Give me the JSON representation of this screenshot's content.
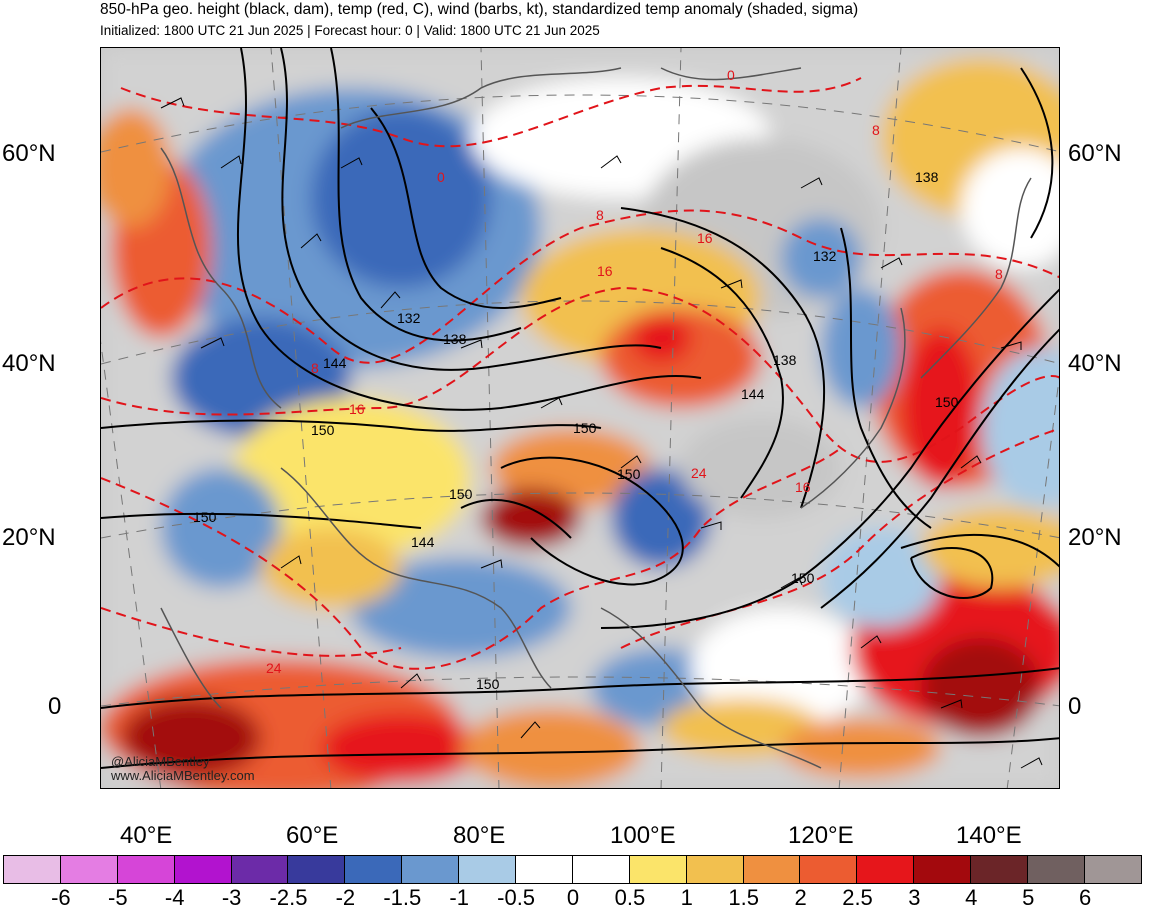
{
  "header": {
    "title": "850-hPa geo. height (black, dam), temp (red, C), wind (barbs, kt), standardized temp anomaly (shaded, sigma)",
    "subtitle": "Initialized: 1800 UTC 21 Jun 2025 | Forecast hour: 0 | Valid: 1800 UTC 21 Jun 2025"
  },
  "map": {
    "lat_labels": [
      "60°N",
      "40°N",
      "20°N",
      "0"
    ],
    "lon_labels": [
      "40°E",
      "60°E",
      "80°E",
      "100°E",
      "120°E",
      "140°E"
    ],
    "height_contour_labels": [
      "132",
      "138",
      "144",
      "150",
      "150",
      "150",
      "150",
      "144",
      "150",
      "132",
      "138",
      "138",
      "144",
      "150",
      "150",
      "150"
    ],
    "temp_contour_labels": [
      "0",
      "0",
      "8",
      "8",
      "16",
      "16",
      "8",
      "16",
      "24",
      "24",
      "16",
      "8"
    ],
    "watermark_handle": "@AliciaMBentley",
    "watermark_url": "www.AliciaMBentley.com"
  },
  "colorbar": {
    "colors": [
      "#e8bde6",
      "#e47de3",
      "#d645d8",
      "#b213cf",
      "#6c2ba8",
      "#383a9c",
      "#3b69b9",
      "#6a98cf",
      "#a9cbe6",
      "#ffffff",
      "#ffffff",
      "#fbe46a",
      "#f2c04f",
      "#ef9040",
      "#ec5c31",
      "#e6161b",
      "#a3090d",
      "#6b2528",
      "#706060",
      "#a09696"
    ],
    "tick_labels": [
      "-6",
      "-5",
      "-4",
      "-3",
      "-2.5",
      "-2",
      "-1.5",
      "-1",
      "-0.5",
      "0",
      "0.5",
      "1",
      "1.5",
      "2",
      "2.5",
      "3",
      "4",
      "5",
      "6"
    ]
  }
}
